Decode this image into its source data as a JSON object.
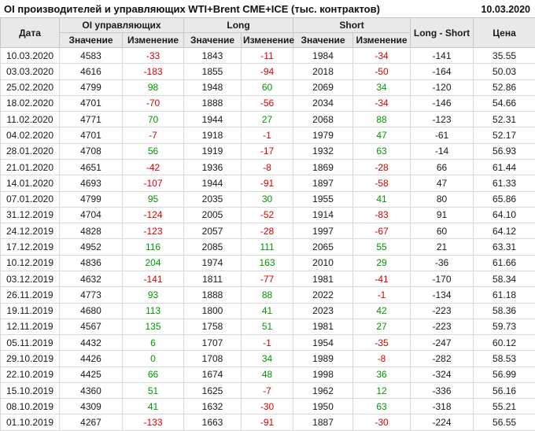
{
  "header": {
    "title": "OI производителей и управляющих WTI+Brent CME+ICE (тыс. контрактов)",
    "date": "10.03.2020"
  },
  "colors": {
    "positive": "#009900",
    "negative": "#dd0000",
    "text": "#1a1a1a",
    "header_bg": "#e9e9e9"
  },
  "table": {
    "columns": {
      "date": "Дата",
      "oi_group": "OI управляющих",
      "long_group": "Long",
      "short_group": "Short",
      "value": "Значение",
      "change": "Изменение",
      "long_short": "Long - Short",
      "price": "Цена"
    },
    "rows": [
      {
        "date": "10.03.2020",
        "oi": "4583",
        "oi_chg": "-33",
        "long": "1843",
        "long_chg": "-11",
        "short": "1984",
        "short_chg": "-34",
        "long_short": "-141",
        "price": "35.55"
      },
      {
        "date": "03.03.2020",
        "oi": "4616",
        "oi_chg": "-183",
        "long": "1855",
        "long_chg": "-94",
        "short": "2018",
        "short_chg": "-50",
        "long_short": "-164",
        "price": "50.03"
      },
      {
        "date": "25.02.2020",
        "oi": "4799",
        "oi_chg": "98",
        "long": "1948",
        "long_chg": "60",
        "short": "2069",
        "short_chg": "34",
        "long_short": "-120",
        "price": "52.86"
      },
      {
        "date": "18.02.2020",
        "oi": "4701",
        "oi_chg": "-70",
        "long": "1888",
        "long_chg": "-56",
        "short": "2034",
        "short_chg": "-34",
        "long_short": "-146",
        "price": "54.66"
      },
      {
        "date": "11.02.2020",
        "oi": "4771",
        "oi_chg": "70",
        "long": "1944",
        "long_chg": "27",
        "short": "2068",
        "short_chg": "88",
        "long_short": "-123",
        "price": "52.31"
      },
      {
        "date": "04.02.2020",
        "oi": "4701",
        "oi_chg": "-7",
        "long": "1918",
        "long_chg": "-1",
        "short": "1979",
        "short_chg": "47",
        "long_short": "-61",
        "price": "52.17"
      },
      {
        "date": "28.01.2020",
        "oi": "4708",
        "oi_chg": "56",
        "long": "1919",
        "long_chg": "-17",
        "short": "1932",
        "short_chg": "63",
        "long_short": "-14",
        "price": "56.93"
      },
      {
        "date": "21.01.2020",
        "oi": "4651",
        "oi_chg": "-42",
        "long": "1936",
        "long_chg": "-8",
        "short": "1869",
        "short_chg": "-28",
        "long_short": "66",
        "price": "61.44"
      },
      {
        "date": "14.01.2020",
        "oi": "4693",
        "oi_chg": "-107",
        "long": "1944",
        "long_chg": "-91",
        "short": "1897",
        "short_chg": "-58",
        "long_short": "47",
        "price": "61.33"
      },
      {
        "date": "07.01.2020",
        "oi": "4799",
        "oi_chg": "95",
        "long": "2035",
        "long_chg": "30",
        "short": "1955",
        "short_chg": "41",
        "long_short": "80",
        "price": "65.86"
      },
      {
        "date": "31.12.2019",
        "oi": "4704",
        "oi_chg": "-124",
        "long": "2005",
        "long_chg": "-52",
        "short": "1914",
        "short_chg": "-83",
        "long_short": "91",
        "price": "64.10"
      },
      {
        "date": "24.12.2019",
        "oi": "4828",
        "oi_chg": "-123",
        "long": "2057",
        "long_chg": "-28",
        "short": "1997",
        "short_chg": "-67",
        "long_short": "60",
        "price": "64.12"
      },
      {
        "date": "17.12.2019",
        "oi": "4952",
        "oi_chg": "116",
        "long": "2085",
        "long_chg": "111",
        "short": "2065",
        "short_chg": "55",
        "long_short": "21",
        "price": "63.31"
      },
      {
        "date": "10.12.2019",
        "oi": "4836",
        "oi_chg": "204",
        "long": "1974",
        "long_chg": "163",
        "short": "2010",
        "short_chg": "29",
        "long_short": "-36",
        "price": "61.66"
      },
      {
        "date": "03.12.2019",
        "oi": "4632",
        "oi_chg": "-141",
        "long": "1811",
        "long_chg": "-77",
        "short": "1981",
        "short_chg": "-41",
        "long_short": "-170",
        "price": "58.34"
      },
      {
        "date": "26.11.2019",
        "oi": "4773",
        "oi_chg": "93",
        "long": "1888",
        "long_chg": "88",
        "short": "2022",
        "short_chg": "-1",
        "long_short": "-134",
        "price": "61.18"
      },
      {
        "date": "19.11.2019",
        "oi": "4680",
        "oi_chg": "113",
        "long": "1800",
        "long_chg": "41",
        "short": "2023",
        "short_chg": "42",
        "long_short": "-223",
        "price": "58.36"
      },
      {
        "date": "12.11.2019",
        "oi": "4567",
        "oi_chg": "135",
        "long": "1758",
        "long_chg": "51",
        "short": "1981",
        "short_chg": "27",
        "long_short": "-223",
        "price": "59.73"
      },
      {
        "date": "05.11.2019",
        "oi": "4432",
        "oi_chg": "6",
        "long": "1707",
        "long_chg": "-1",
        "short": "1954",
        "short_chg": "-35",
        "long_short": "-247",
        "price": "60.12"
      },
      {
        "date": "29.10.2019",
        "oi": "4426",
        "oi_chg": "0",
        "long": "1708",
        "long_chg": "34",
        "short": "1989",
        "short_chg": "-8",
        "long_short": "-282",
        "price": "58.53"
      },
      {
        "date": "22.10.2019",
        "oi": "4425",
        "oi_chg": "66",
        "long": "1674",
        "long_chg": "48",
        "short": "1998",
        "short_chg": "36",
        "long_short": "-324",
        "price": "56.99"
      },
      {
        "date": "15.10.2019",
        "oi": "4360",
        "oi_chg": "51",
        "long": "1625",
        "long_chg": "-7",
        "short": "1962",
        "short_chg": "12",
        "long_short": "-336",
        "price": "56.16"
      },
      {
        "date": "08.10.2019",
        "oi": "4309",
        "oi_chg": "41",
        "long": "1632",
        "long_chg": "-30",
        "short": "1950",
        "short_chg": "63",
        "long_short": "-318",
        "price": "55.21"
      },
      {
        "date": "01.10.2019",
        "oi": "4267",
        "oi_chg": "-133",
        "long": "1663",
        "long_chg": "-91",
        "short": "1887",
        "short_chg": "-30",
        "long_short": "-224",
        "price": "56.55"
      }
    ]
  }
}
